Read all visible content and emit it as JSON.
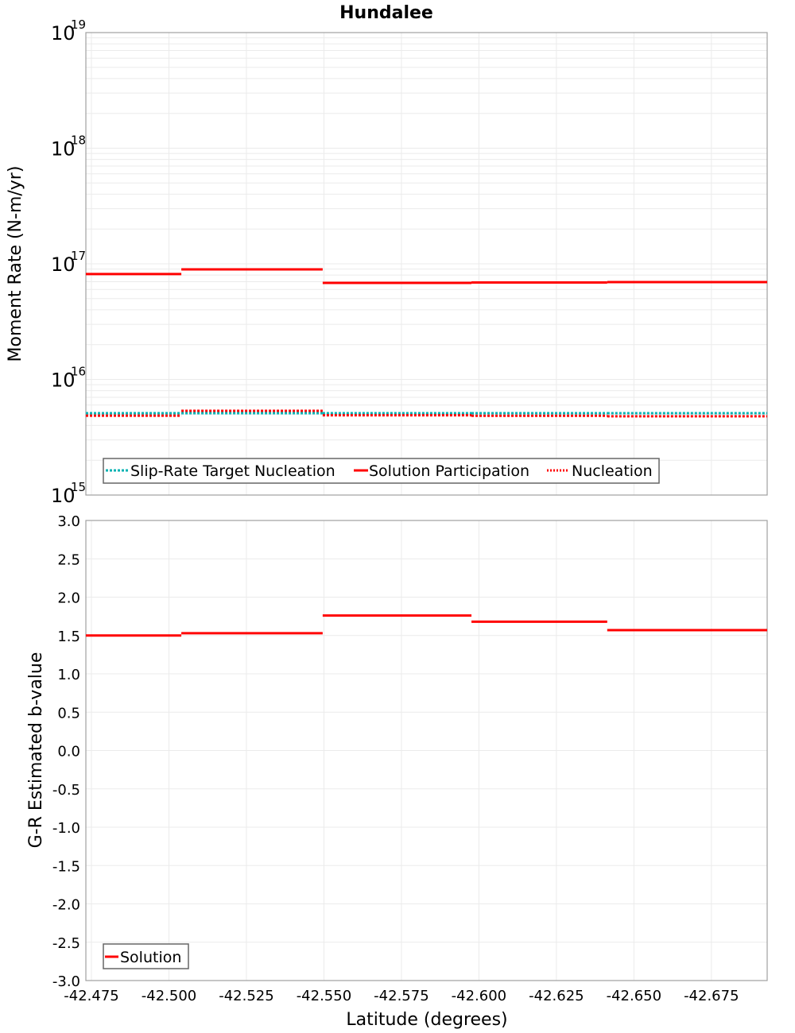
{
  "chart_data": [
    {
      "type": "line",
      "subtype": "step",
      "title": "Hundalee",
      "xlabel": "",
      "ylabel": "Moment Rate (N-m/yr)",
      "yscale": "log",
      "ylim": [
        1000000000000000.0,
        1e+19
      ],
      "xlim": [
        -42.4732,
        -42.693
      ],
      "y_ticks": [
        "10^19",
        "10^18",
        "10^17",
        "10^16",
        "10^15"
      ],
      "grid": true,
      "legend_position": "lower-left-inside",
      "segments_x": [
        [
          -42.4732,
          -42.504
        ],
        [
          -42.504,
          -42.5496
        ],
        [
          -42.5496,
          -42.5976
        ],
        [
          -42.5976,
          -42.6414
        ],
        [
          -42.6414,
          -42.693
        ]
      ],
      "series": [
        {
          "name": "Slip-Rate Target Nucleation",
          "style": "dotted",
          "color": "#00b2b2",
          "values": [
            5100000000000000.0,
            5100000000000000.0,
            5100000000000000.0,
            5100000000000000.0,
            5100000000000000.0
          ]
        },
        {
          "name": "Solution Participation",
          "style": "solid",
          "color": "#ff0000",
          "values": [
            8.15e+16,
            8.96e+16,
            6.84e+16,
            6.9e+16,
            6.95e+16
          ]
        },
        {
          "name": "Nucleation",
          "style": "dotted",
          "color": "#ff0000",
          "values": [
            4860000000000000.0,
            5350000000000000.0,
            4900000000000000.0,
            4850000000000000.0,
            4800000000000000.0
          ]
        }
      ]
    },
    {
      "type": "line",
      "subtype": "step",
      "title": "",
      "xlabel": "Latitude (degrees)",
      "ylabel": "G-R Estimated b-value",
      "ylim": [
        -3.0,
        3.0
      ],
      "xlim": [
        -42.4732,
        -42.693
      ],
      "x_ticks": [
        "-42.475",
        "-42.500",
        "-42.525",
        "-42.550",
        "-42.575",
        "-42.600",
        "-42.625",
        "-42.650",
        "-42.675"
      ],
      "y_ticks": [
        "3.0",
        "2.5",
        "2.0",
        "1.5",
        "1.0",
        "0.5",
        "0.0",
        "-0.5",
        "-1.0",
        "-1.5",
        "-2.0",
        "-2.5",
        "-3.0"
      ],
      "grid": true,
      "legend_position": "lower-left-inside",
      "segments_x": [
        [
          -42.4732,
          -42.504
        ],
        [
          -42.504,
          -42.5496
        ],
        [
          -42.5496,
          -42.5976
        ],
        [
          -42.5976,
          -42.6414
        ],
        [
          -42.6414,
          -42.693
        ]
      ],
      "series": [
        {
          "name": "Solution",
          "style": "solid",
          "color": "#ff0000",
          "values": [
            1.5,
            1.53,
            1.76,
            1.68,
            1.57
          ]
        }
      ]
    }
  ],
  "colors": {
    "solution": "#ff0000",
    "target": "#00b2b2",
    "grid": "#ebebeb",
    "frame": "#a0a0a0"
  }
}
